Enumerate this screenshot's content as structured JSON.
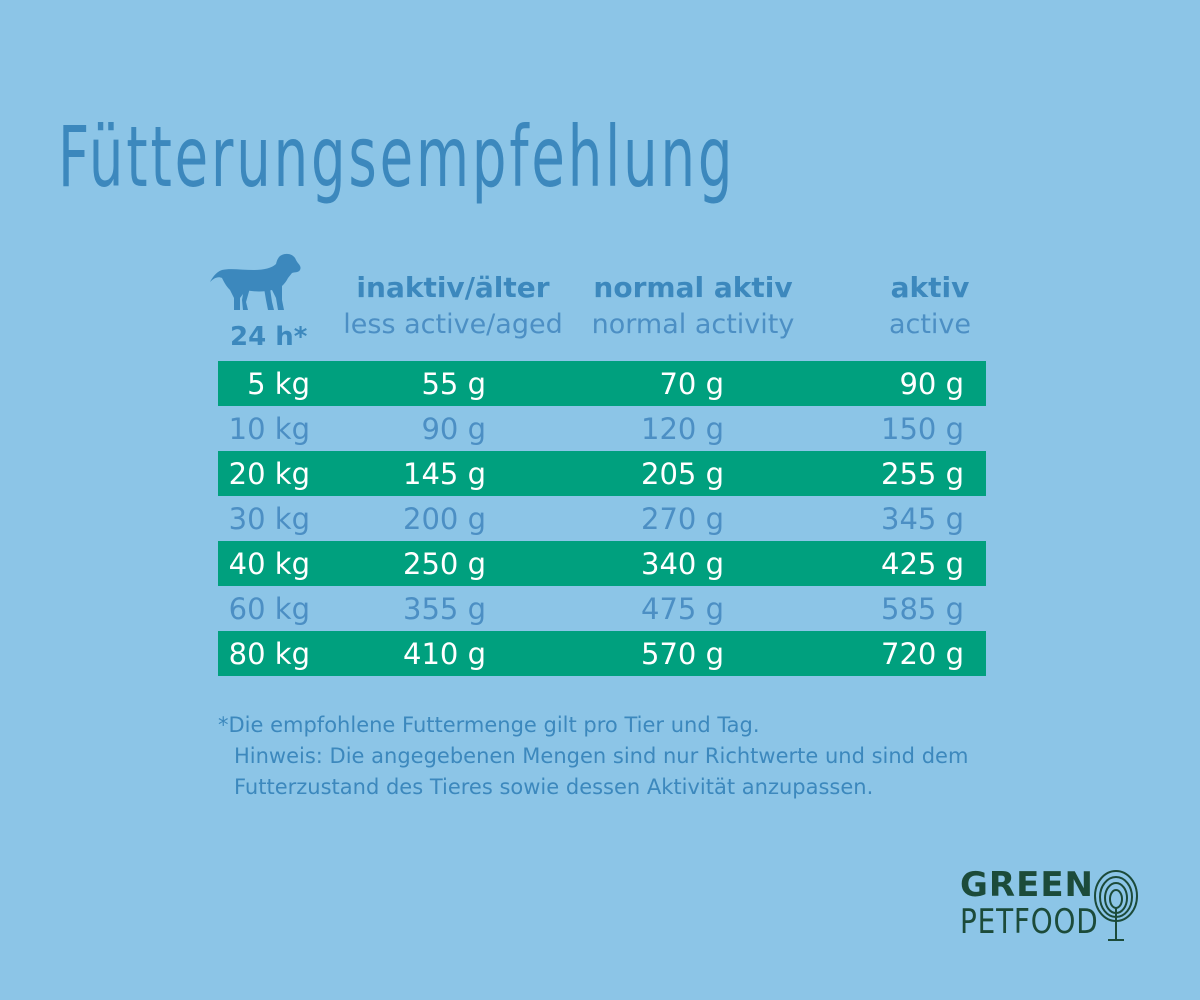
{
  "title": "Fütterungsempfehlung",
  "header": {
    "per_day": "24 h*",
    "columns": [
      {
        "de": "inaktiv/älter",
        "en": "less active/aged"
      },
      {
        "de": "normal aktiv",
        "en": "normal activity"
      },
      {
        "de": "aktiv",
        "en": "active"
      }
    ]
  },
  "rows": [
    {
      "weight": "5 kg",
      "inactive": "55 g",
      "normal": "70 g",
      "active": "90 g"
    },
    {
      "weight": "10 kg",
      "inactive": "90 g",
      "normal": "120 g",
      "active": "150 g"
    },
    {
      "weight": "20 kg",
      "inactive": "145 g",
      "normal": "205 g",
      "active": "255 g"
    },
    {
      "weight": "30 kg",
      "inactive": "200 g",
      "normal": "270 g",
      "active": "345 g"
    },
    {
      "weight": "40 kg",
      "inactive": "250 g",
      "normal": "340 g",
      "active": "425 g"
    },
    {
      "weight": "60 kg",
      "inactive": "355 g",
      "normal": "475 g",
      "active": "585 g"
    },
    {
      "weight": "80 kg",
      "inactive": "410 g",
      "normal": "570 g",
      "active": "720 g"
    }
  ],
  "footnote": {
    "line1": "*Die empfohlene Futtermenge gilt pro Tier und Tag.",
    "line2": "Hinweis: Die angegebenen Mengen sind nur Richtwerte und sind dem",
    "line3": "Futterzustand des Tieres sowie dessen Aktivität anzupassen."
  },
  "logo": {
    "line1": "GREEN",
    "line2": "PETFOOD"
  },
  "icons": {
    "dog": "dog-icon",
    "tree": "fingerprint-tree-icon"
  },
  "colors": {
    "background": "#8cc5e7",
    "title": "#3c88bd",
    "band": "#00a07e",
    "band_text": "#ffffff",
    "plain_text": "#4c8fc4",
    "logo": "#1c4b3a"
  }
}
